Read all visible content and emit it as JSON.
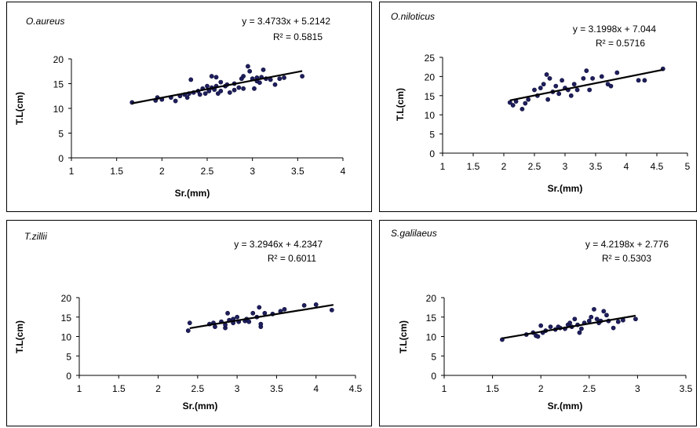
{
  "chart_data": [
    {
      "type": "scatter",
      "title": "O.aureus",
      "equation": "y = 3.4733x + 5.2142",
      "r_squared": "R² = 0.5815",
      "xlabel": "Sr.(mm)",
      "ylabel": "T.L(cm)",
      "xlim": [
        1,
        4
      ],
      "ylim": [
        0,
        20
      ],
      "xticks": [
        "1",
        "1.5",
        "2",
        "2.5",
        "3",
        "3.5",
        "4"
      ],
      "yticks": [
        "0",
        "5",
        "10",
        "15",
        "20"
      ],
      "trendline": {
        "slope": 3.4733,
        "intercept": 5.2142,
        "x_range": [
          1.67,
          3.55
        ]
      },
      "points": [
        [
          1.67,
          11.2
        ],
        [
          1.93,
          11.6
        ],
        [
          1.95,
          12.2
        ],
        [
          2.0,
          11.8
        ],
        [
          2.1,
          12.2
        ],
        [
          2.15,
          11.5
        ],
        [
          2.2,
          12.5
        ],
        [
          2.25,
          12.8
        ],
        [
          2.28,
          12.2
        ],
        [
          2.3,
          13.0
        ],
        [
          2.32,
          15.8
        ],
        [
          2.35,
          13.2
        ],
        [
          2.4,
          13.5
        ],
        [
          2.42,
          12.8
        ],
        [
          2.45,
          14.0
        ],
        [
          2.48,
          13.0
        ],
        [
          2.5,
          14.5
        ],
        [
          2.52,
          13.5
        ],
        [
          2.55,
          16.5
        ],
        [
          2.55,
          14.2
        ],
        [
          2.58,
          13.8
        ],
        [
          2.6,
          16.3
        ],
        [
          2.6,
          14.5
        ],
        [
          2.62,
          13.0
        ],
        [
          2.65,
          13.5
        ],
        [
          2.65,
          15.3
        ],
        [
          2.7,
          14.5
        ],
        [
          2.72,
          14.8
        ],
        [
          2.75,
          13.2
        ],
        [
          2.8,
          15.0
        ],
        [
          2.8,
          13.7
        ],
        [
          2.85,
          14.2
        ],
        [
          2.88,
          16.0
        ],
        [
          2.9,
          16.5
        ],
        [
          2.9,
          14.0
        ],
        [
          2.95,
          18.5
        ],
        [
          2.97,
          17.5
        ],
        [
          3.0,
          16.0
        ],
        [
          3.02,
          14.0
        ],
        [
          3.05,
          15.5
        ],
        [
          3.05,
          16.2
        ],
        [
          3.08,
          15.2
        ],
        [
          3.1,
          16.3
        ],
        [
          3.12,
          17.8
        ],
        [
          3.15,
          16.0
        ],
        [
          3.2,
          15.8
        ],
        [
          3.25,
          14.8
        ],
        [
          3.3,
          16.0
        ],
        [
          3.35,
          16.2
        ],
        [
          3.55,
          16.5
        ]
      ]
    },
    {
      "type": "scatter",
      "title": "O.niloticus",
      "equation": "y = 3.1998x + 7.044",
      "r_squared": "R² = 0.5716",
      "xlabel": "Sr.(mm)",
      "ylabel": "T.L(cm)",
      "xlim": [
        1,
        5
      ],
      "ylim": [
        0,
        25
      ],
      "xticks": [
        "1",
        "1.5",
        "2",
        "2.5",
        "3",
        "3.5",
        "4",
        "4.5",
        "5"
      ],
      "yticks": [
        "0",
        "5",
        "10",
        "15",
        "20",
        "25"
      ],
      "trendline": {
        "slope": 3.1998,
        "intercept": 7.044,
        "x_range": [
          2.1,
          4.6
        ]
      },
      "points": [
        [
          2.1,
          13.2
        ],
        [
          2.15,
          12.5
        ],
        [
          2.2,
          13.5
        ],
        [
          2.3,
          11.5
        ],
        [
          2.35,
          13.0
        ],
        [
          2.4,
          14.0
        ],
        [
          2.5,
          16.5
        ],
        [
          2.55,
          15.0
        ],
        [
          2.6,
          17.0
        ],
        [
          2.65,
          18.0
        ],
        [
          2.7,
          20.5
        ],
        [
          2.72,
          14.0
        ],
        [
          2.75,
          19.5
        ],
        [
          2.8,
          16.0
        ],
        [
          2.85,
          17.5
        ],
        [
          2.9,
          15.5
        ],
        [
          2.95,
          19.0
        ],
        [
          3.0,
          17.0
        ],
        [
          3.05,
          16.5
        ],
        [
          3.1,
          15.0
        ],
        [
          3.15,
          18.0
        ],
        [
          3.2,
          16.5
        ],
        [
          3.3,
          19.5
        ],
        [
          3.35,
          21.5
        ],
        [
          3.4,
          16.5
        ],
        [
          3.45,
          19.5
        ],
        [
          3.6,
          20.0
        ],
        [
          3.7,
          18.0
        ],
        [
          3.75,
          17.5
        ],
        [
          3.85,
          21.0
        ],
        [
          4.2,
          19.0
        ],
        [
          4.3,
          19.0
        ],
        [
          4.6,
          22.0
        ]
      ]
    },
    {
      "type": "scatter",
      "title": "T.zillii",
      "equation": "y = 3.2946x + 4.2347",
      "r_squared": "R² = 0.6011",
      "xlabel": "Sr.(mm)",
      "ylabel": "T.L(cm)",
      "xlim": [
        1,
        4.5
      ],
      "ylim": [
        0,
        20
      ],
      "xticks": [
        "1",
        "1.5",
        "2",
        "2.5",
        "3",
        "3.5",
        "4",
        "4.5"
      ],
      "yticks": [
        "0",
        "5",
        "10",
        "15",
        "20"
      ],
      "trendline": {
        "slope": 3.2946,
        "intercept": 4.2347,
        "x_range": [
          2.4,
          4.22
        ]
      },
      "points": [
        [
          2.38,
          11.5
        ],
        [
          2.4,
          13.5
        ],
        [
          2.65,
          13.2
        ],
        [
          2.7,
          13.5
        ],
        [
          2.72,
          12.5
        ],
        [
          2.8,
          13.8
        ],
        [
          2.85,
          12.2
        ],
        [
          2.85,
          13.0
        ],
        [
          2.88,
          16.0
        ],
        [
          2.9,
          14.2
        ],
        [
          2.95,
          14.5
        ],
        [
          2.95,
          13.5
        ],
        [
          3.0,
          15.0
        ],
        [
          3.02,
          13.8
        ],
        [
          3.1,
          14.0
        ],
        [
          3.12,
          14.5
        ],
        [
          3.15,
          13.8
        ],
        [
          3.2,
          16.0
        ],
        [
          3.25,
          15.0
        ],
        [
          3.28,
          17.5
        ],
        [
          3.3,
          12.5
        ],
        [
          3.3,
          13.2
        ],
        [
          3.35,
          16.0
        ],
        [
          3.45,
          15.8
        ],
        [
          3.55,
          16.5
        ],
        [
          3.6,
          17.0
        ],
        [
          3.85,
          18.0
        ],
        [
          4.0,
          18.2
        ],
        [
          4.2,
          16.8
        ]
      ]
    },
    {
      "type": "scatter",
      "title": "S.galilaeus",
      "equation": "y = 4.2198x + 2.776",
      "r_squared": "R² = 0.5303",
      "xlabel": "Sr.(mm)",
      "ylabel": "T.L(cm)",
      "xlim": [
        1,
        3.5
      ],
      "ylim": [
        0,
        20
      ],
      "xticks": [
        "1",
        "1.5",
        "2",
        "2.5",
        "3",
        "3.5"
      ],
      "yticks": [
        "0",
        "5",
        "10",
        "15",
        "20"
      ],
      "trendline": {
        "slope": 4.2198,
        "intercept": 2.776,
        "x_range": [
          1.6,
          2.98
        ]
      },
      "points": [
        [
          1.6,
          9.2
        ],
        [
          1.85,
          10.5
        ],
        [
          1.92,
          11.0
        ],
        [
          1.95,
          10.2
        ],
        [
          1.97,
          10.0
        ],
        [
          2.0,
          12.8
        ],
        [
          2.02,
          11.0
        ],
        [
          2.05,
          11.5
        ],
        [
          2.1,
          12.5
        ],
        [
          2.15,
          11.8
        ],
        [
          2.18,
          12.5
        ],
        [
          2.2,
          12.2
        ],
        [
          2.25,
          12.0
        ],
        [
          2.28,
          13.0
        ],
        [
          2.3,
          13.5
        ],
        [
          2.32,
          12.5
        ],
        [
          2.35,
          14.5
        ],
        [
          2.38,
          13.0
        ],
        [
          2.4,
          11.0
        ],
        [
          2.42,
          12.0
        ],
        [
          2.45,
          13.5
        ],
        [
          2.5,
          14.0
        ],
        [
          2.52,
          15.0
        ],
        [
          2.55,
          17.0
        ],
        [
          2.58,
          14.5
        ],
        [
          2.6,
          13.5
        ],
        [
          2.62,
          14.0
        ],
        [
          2.65,
          16.5
        ],
        [
          2.68,
          15.5
        ],
        [
          2.7,
          14.0
        ],
        [
          2.75,
          12.2
        ],
        [
          2.8,
          13.8
        ],
        [
          2.85,
          14.2
        ],
        [
          2.98,
          14.5
        ]
      ]
    }
  ]
}
